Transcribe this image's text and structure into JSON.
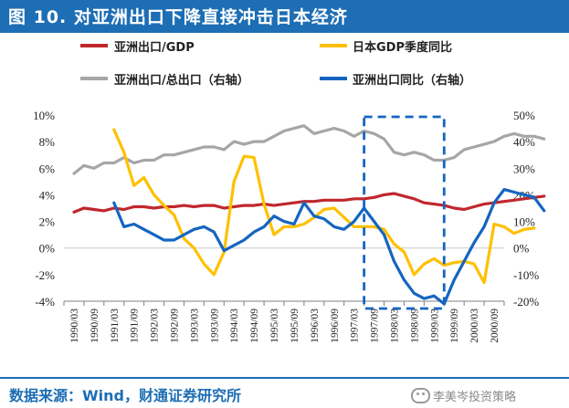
{
  "header": {
    "title": "图 10. 对亚洲出口下降直接冲击日本经济"
  },
  "footer": {
    "source": "数据来源：Wind，财通证券研究所",
    "watermark": "李美岑投资策略"
  },
  "colors": {
    "title_bar": "#1d6eb4",
    "red": "#c0272d",
    "yellow": "#ffc000",
    "gray": "#a6a6a6",
    "blue": "#1565c0"
  },
  "chart_data": {
    "type": "line",
    "title": "对亚洲出口下降直接冲击日本经济",
    "x_ticks": [
      "1990/03",
      "1990/09",
      "1991/03",
      "1991/09",
      "1992/03",
      "1992/09",
      "1993/03",
      "1993/09",
      "1994/03",
      "1994/09",
      "1995/03",
      "1995/09",
      "1996/03",
      "1996/09",
      "1997/03",
      "1997/09",
      "1998/03",
      "1998/09",
      "1999/03",
      "1999/09",
      "2000/03",
      "2000/09"
    ],
    "y_left": {
      "min": -4,
      "max": 10,
      "step": 2,
      "ticks": [
        "-4%",
        "-2%",
        "0%",
        "2%",
        "4%",
        "6%",
        "8%",
        "10%"
      ]
    },
    "y_right": {
      "min": -20,
      "max": 50,
      "step": 10,
      "ticks": [
        "-20%",
        "-10%",
        "0%",
        "10%",
        "20%",
        "30%",
        "40%",
        "50%"
      ]
    },
    "legend": [
      "亚洲出口/GDP",
      "日本GDP季度同比",
      "亚洲出口/总出口（右轴）",
      "亚洲出口同比（右轴）"
    ],
    "highlight_range": [
      "1997/06",
      "1999/06"
    ],
    "series": [
      {
        "name": "亚洲出口/GDP",
        "axis": "left",
        "color": "#c0272d",
        "start": "1990/03",
        "values": [
          2.7,
          3.0,
          2.9,
          2.8,
          3.0,
          2.9,
          3.1,
          3.1,
          3.0,
          3.1,
          3.1,
          3.2,
          3.1,
          3.2,
          3.2,
          3.0,
          3.1,
          3.2,
          3.2,
          3.3,
          3.2,
          3.3,
          3.4,
          3.5,
          3.5,
          3.6,
          3.6,
          3.6,
          3.7,
          3.7,
          3.8,
          4.0,
          4.1,
          3.9,
          3.7,
          3.4,
          3.3,
          3.2,
          3.0,
          2.9,
          3.1,
          3.3,
          3.4,
          3.5,
          3.6,
          3.7,
          3.8,
          3.9
        ]
      },
      {
        "name": "日本GDP季度同比",
        "axis": "left",
        "color": "#ffc000",
        "start": "1991/03",
        "values": [
          8.9,
          7.2,
          4.7,
          5.3,
          4.0,
          3.2,
          2.5,
          0.7,
          0.0,
          -1.2,
          -2.0,
          -0.3,
          5.0,
          6.9,
          6.8,
          3.3,
          1.0,
          1.6,
          1.6,
          1.8,
          2.3,
          2.9,
          3.0,
          2.3,
          1.6,
          1.6,
          1.6,
          1.4,
          0.3,
          -0.3,
          -2.0,
          -1.2,
          -0.8,
          -1.3,
          -1.1,
          -1.0,
          -1.2,
          -2.6,
          1.8,
          1.6,
          1.1,
          1.4,
          1.5
        ]
      },
      {
        "name": "亚洲出口/总出口（右轴）",
        "axis": "right",
        "color": "#a6a6a6",
        "start": "1990/03",
        "values": [
          28,
          31,
          30,
          32,
          32,
          34,
          32,
          33,
          33,
          35,
          35,
          36,
          37,
          38,
          38,
          37,
          40,
          39,
          40,
          40,
          42,
          44,
          45,
          46,
          43,
          44,
          45,
          44,
          42,
          44,
          43,
          41,
          36,
          35,
          36,
          35,
          33,
          33,
          34,
          37,
          38,
          39,
          40,
          42,
          43,
          42,
          42,
          41
        ]
      },
      {
        "name": "亚洲出口同比（右轴）",
        "axis": "right",
        "color": "#1565c0",
        "start": "1991/03",
        "values": [
          17,
          8,
          9,
          7,
          5,
          3,
          3,
          5,
          7,
          8,
          6,
          -1,
          1,
          3,
          6,
          8,
          12,
          10,
          9,
          17,
          12,
          11,
          8,
          7,
          10,
          15,
          10,
          5,
          -5,
          -12,
          -17,
          -19,
          -18,
          -21,
          -12,
          -5,
          2,
          8,
          17,
          22,
          21,
          20,
          19,
          14
        ]
      }
    ]
  }
}
